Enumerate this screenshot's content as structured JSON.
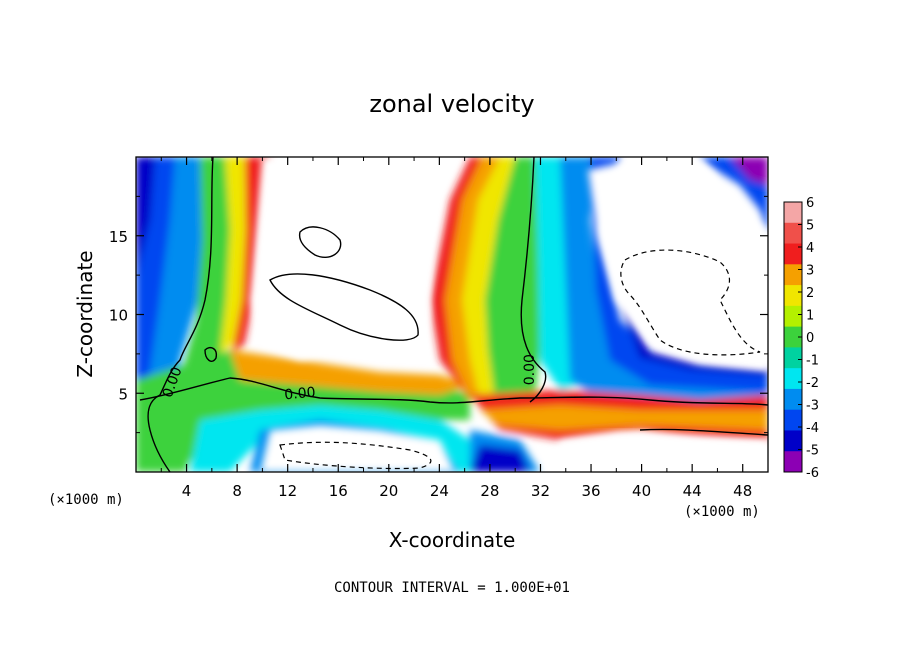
{
  "chart_data": {
    "type": "heatmap",
    "title": "zonal velocity",
    "xlabel": "X-coordinate",
    "ylabel": "Z-coordinate",
    "x_unit_label": "(×1000 m)",
    "x_unit_label_right": "(×1000 m)",
    "footer": "CONTOUR INTERVAL = 1.000E+01",
    "xlim": [
      0,
      50
    ],
    "ylim": [
      0,
      20
    ],
    "x_ticks": [
      4,
      8,
      12,
      16,
      20,
      24,
      28,
      32,
      36,
      40,
      44,
      48
    ],
    "y_ticks": [
      5,
      10,
      15
    ],
    "colorbar": {
      "levels": [
        6,
        5,
        4,
        3,
        2,
        1,
        0,
        -1,
        -2,
        -3,
        -4,
        -5,
        -6
      ],
      "colors": [
        "#f4a6a6",
        "#f0504a",
        "#f01e1e",
        "#f5a000",
        "#f0e600",
        "#b4f000",
        "#3cd23c",
        "#00d2a0",
        "#00e6f0",
        "#008cf0",
        "#0046f0",
        "#0000c8",
        "#8c00b4"
      ]
    },
    "contour_labels": [
      {
        "text": "0.00",
        "x": 3.2,
        "z": 5.6
      },
      {
        "text": "0.00",
        "x": 13.0,
        "z": 4.7
      },
      {
        "text": "0.00",
        "x": 31.5,
        "z": 6.5
      }
    ],
    "grid": false
  }
}
